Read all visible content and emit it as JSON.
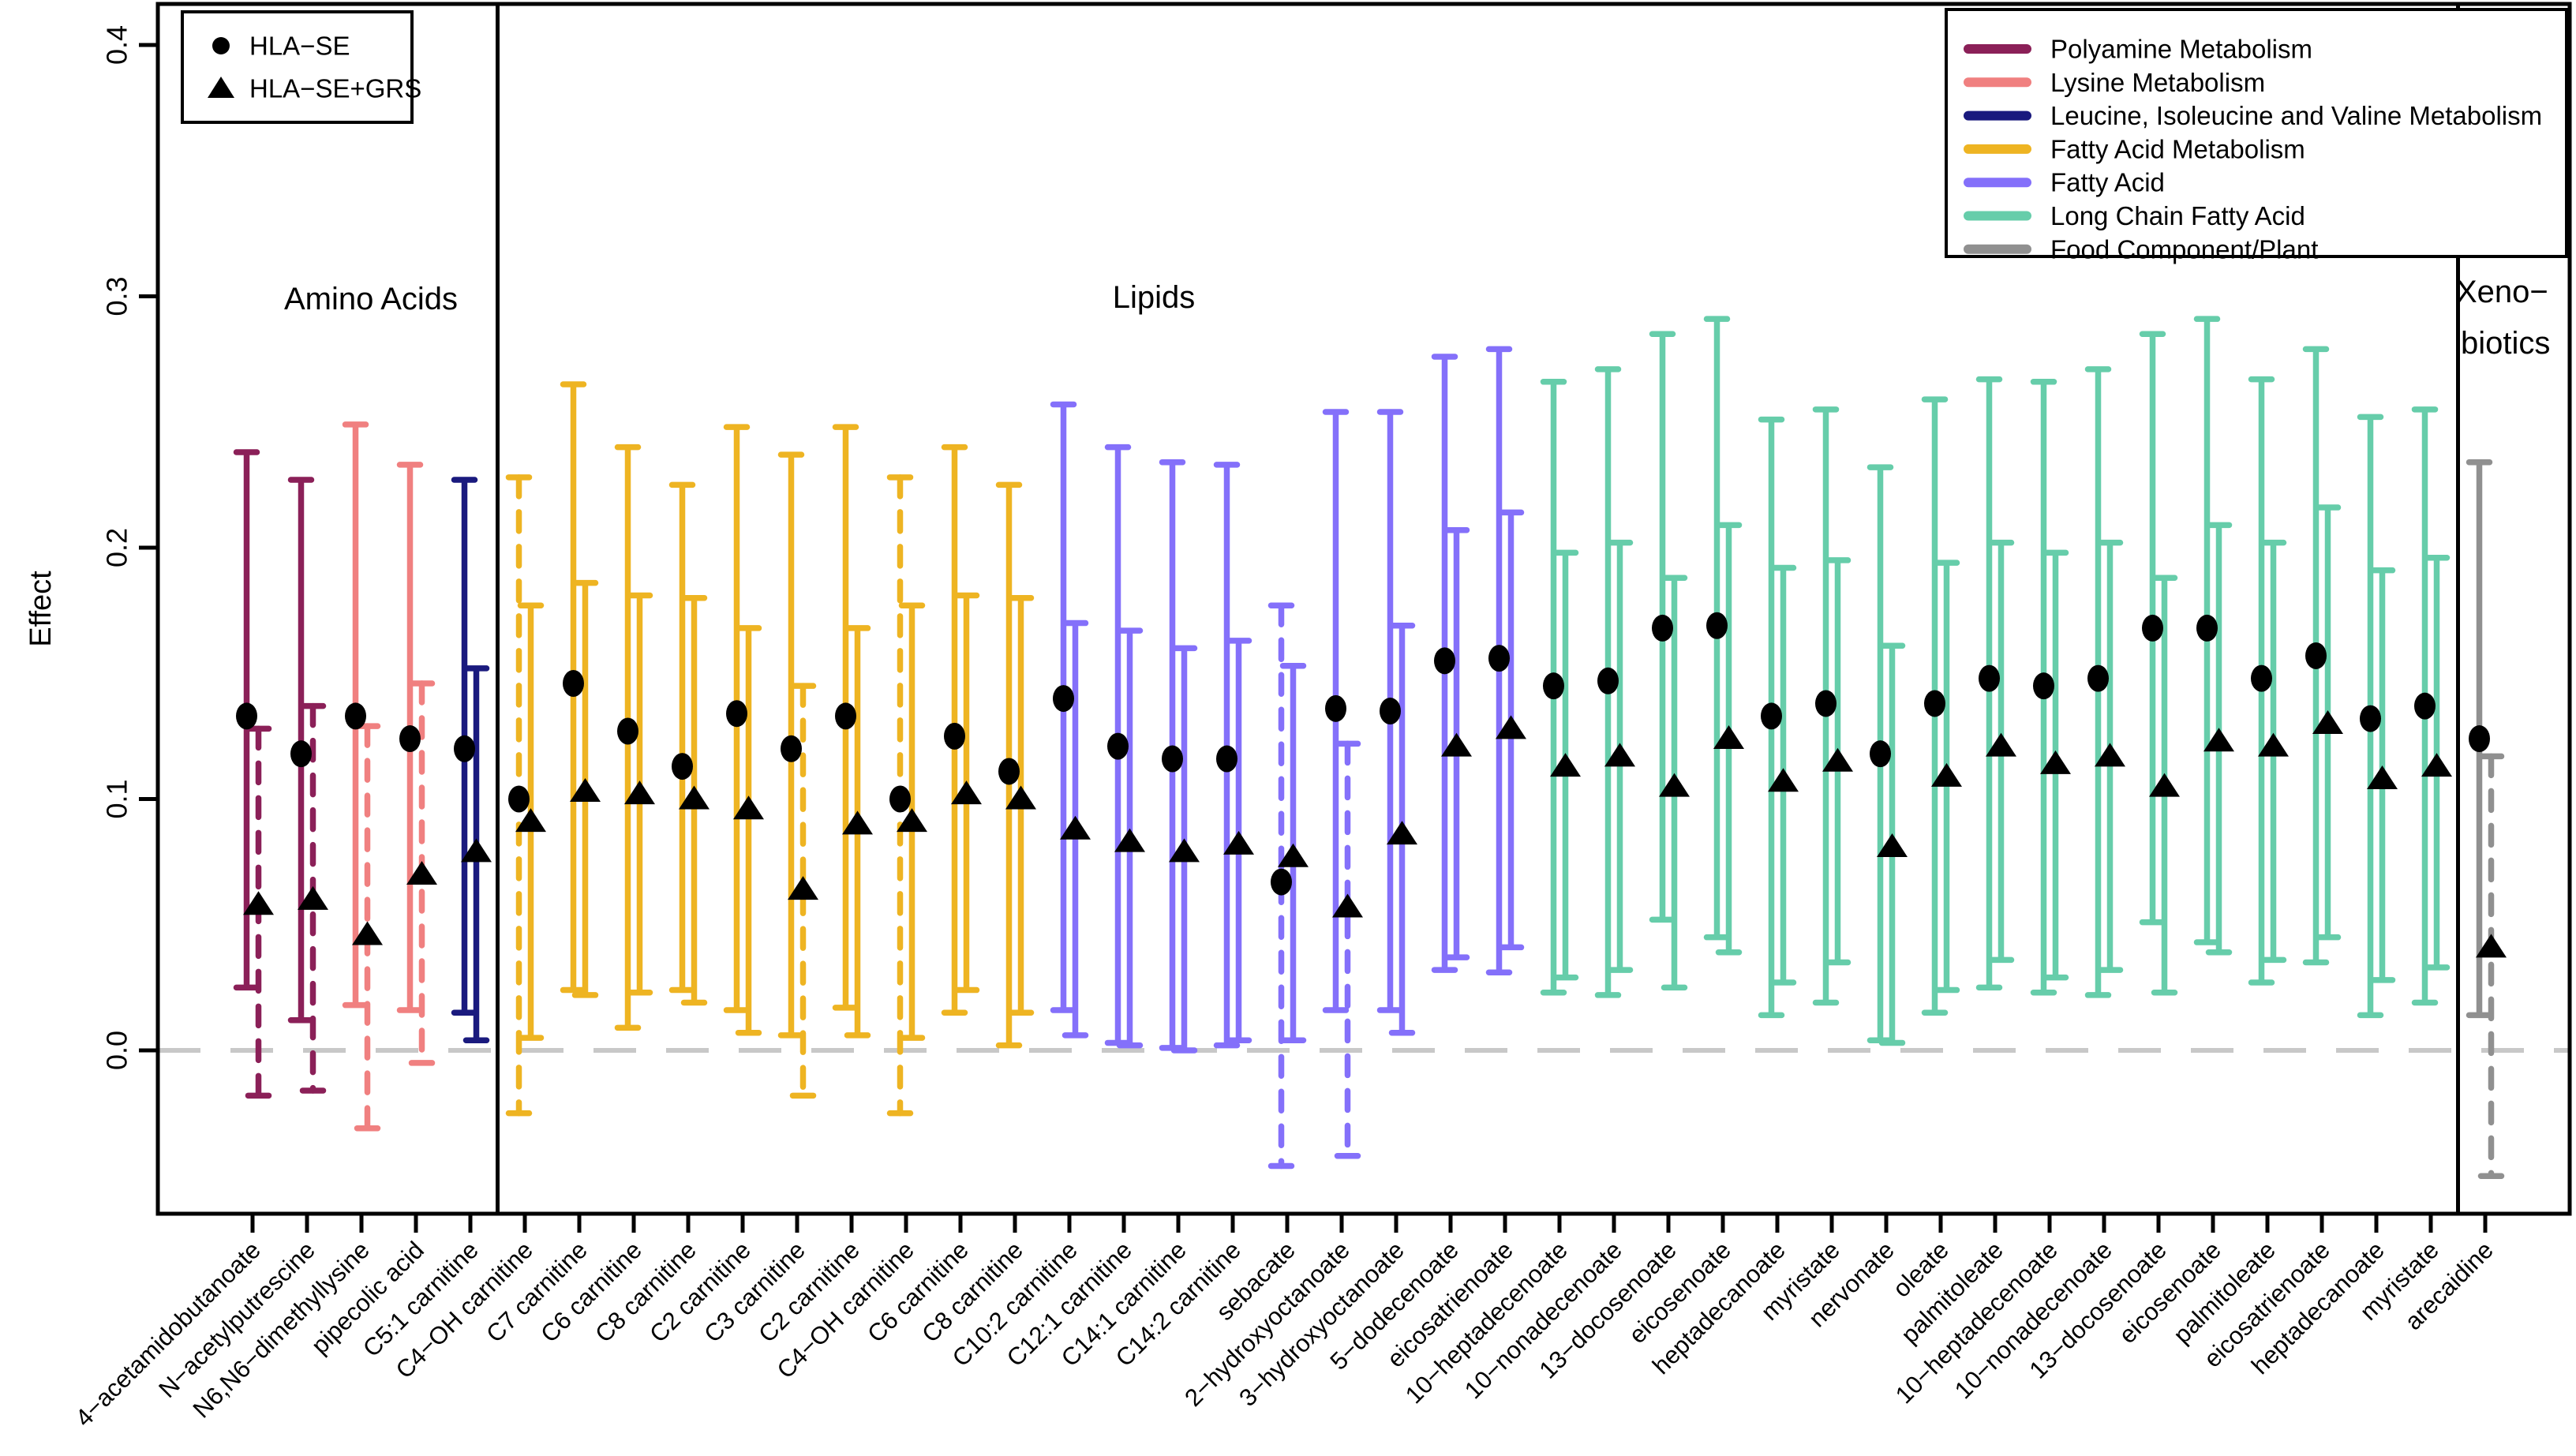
{
  "chart_data": {
    "type": "errorbar",
    "title": "",
    "ylabel": "Effect",
    "y_ticks": [
      {
        "value": 0.0,
        "label": "0.0"
      },
      {
        "value": 0.1,
        "label": "0.1"
      },
      {
        "value": 0.2,
        "label": "0.2"
      },
      {
        "value": 0.3,
        "label": "0.3"
      },
      {
        "value": 0.4,
        "label": "0.4"
      }
    ],
    "ylim": [
      -0.065,
      0.417
    ],
    "zero_line": 0.0,
    "grid": "off",
    "marker_legend": {
      "position": "top-left",
      "entries": [
        {
          "id": "se",
          "label": "HLA−SE",
          "marker": "circle"
        },
        {
          "id": "grs",
          "label": "HLA−SE+GRS",
          "marker": "triangle"
        }
      ]
    },
    "color_legend": {
      "position": "top-right",
      "entries": [
        {
          "id": "polyamine",
          "label": "Polyamine Metabolism",
          "color": "#8B2058"
        },
        {
          "id": "lysine",
          "label": "Lysine Metabolism",
          "color": "#F08080"
        },
        {
          "id": "bcaa",
          "label": "Leucine, Isoleucine and Valine Metabolism",
          "color": "#1A1A7E"
        },
        {
          "id": "fam",
          "label": "Fatty Acid Metabolism",
          "color": "#EEB422"
        },
        {
          "id": "fa",
          "label": "Fatty Acid",
          "color": "#8470FA"
        },
        {
          "id": "lcfa",
          "label": "Long Chain Fatty Acid",
          "color": "#66CDAA"
        },
        {
          "id": "food",
          "label": "Food Component/Plant",
          "color": "#909090"
        }
      ]
    },
    "sections": [
      {
        "lines": [
          "Amino Acids"
        ],
        "from": 0,
        "to": 4
      },
      {
        "lines": [
          "Lipids"
        ],
        "from": 5,
        "to": 40
      },
      {
        "lines": [
          "Xeno−",
          "biotics"
        ],
        "from": 41,
        "to": 41
      }
    ],
    "points": [
      {
        "label": "4−acetamidobutanoate",
        "group": "polyamine",
        "se": {
          "est": 0.133,
          "lo": 0.025,
          "hi": 0.238,
          "dashed": false
        },
        "grs": {
          "est": 0.058,
          "lo": -0.018,
          "hi": 0.128,
          "dashed": true
        }
      },
      {
        "label": "N−acetylputrescine",
        "group": "polyamine",
        "se": {
          "est": 0.118,
          "lo": 0.012,
          "hi": 0.227,
          "dashed": false
        },
        "grs": {
          "est": 0.06,
          "lo": -0.016,
          "hi": 0.137,
          "dashed": true
        }
      },
      {
        "label": "N6,N6−dimethyllysine",
        "group": "lysine",
        "se": {
          "est": 0.133,
          "lo": 0.018,
          "hi": 0.249,
          "dashed": false
        },
        "grs": {
          "est": 0.046,
          "lo": -0.031,
          "hi": 0.129,
          "dashed": true
        }
      },
      {
        "label": "pipecolic acid",
        "group": "lysine",
        "se": {
          "est": 0.124,
          "lo": 0.016,
          "hi": 0.233,
          "dashed": false
        },
        "grs": {
          "est": 0.07,
          "lo": -0.005,
          "hi": 0.146,
          "dashed": true
        }
      },
      {
        "label": "C5:1 carnitine",
        "group": "bcaa",
        "se": {
          "est": 0.12,
          "lo": 0.015,
          "hi": 0.227,
          "dashed": false
        },
        "grs": {
          "est": 0.079,
          "lo": 0.004,
          "hi": 0.152,
          "dashed": false
        }
      },
      {
        "label": "C4−OH carnitine",
        "group": "fam",
        "se": {
          "est": 0.1,
          "lo": -0.025,
          "hi": 0.228,
          "dashed": true
        },
        "grs": {
          "est": 0.091,
          "lo": 0.005,
          "hi": 0.177,
          "dashed": false
        }
      },
      {
        "label": "C7 carnitine",
        "group": "fam",
        "se": {
          "est": 0.146,
          "lo": 0.024,
          "hi": 0.265,
          "dashed": false
        },
        "grs": {
          "est": 0.103,
          "lo": 0.022,
          "hi": 0.186,
          "dashed": false
        }
      },
      {
        "label": "C6 carnitine",
        "group": "fam",
        "se": {
          "est": 0.127,
          "lo": 0.009,
          "hi": 0.24,
          "dashed": false
        },
        "grs": {
          "est": 0.102,
          "lo": 0.023,
          "hi": 0.181,
          "dashed": false
        }
      },
      {
        "label": "C8 carnitine",
        "group": "fam",
        "se": {
          "est": 0.113,
          "lo": 0.024,
          "hi": 0.225,
          "dashed": false
        },
        "grs": {
          "est": 0.1,
          "lo": 0.019,
          "hi": 0.18,
          "dashed": false
        }
      },
      {
        "label": "C2 carnitine",
        "group": "fam",
        "se": {
          "est": 0.134,
          "lo": 0.016,
          "hi": 0.248,
          "dashed": false
        },
        "grs": {
          "est": 0.096,
          "lo": 0.007,
          "hi": 0.168,
          "dashed": false
        }
      },
      {
        "label": "C3 carnitine",
        "group": "fam",
        "se": {
          "est": 0.12,
          "lo": 0.006,
          "hi": 0.237,
          "dashed": false
        },
        "grs": {
          "est": 0.064,
          "lo": -0.018,
          "hi": 0.145,
          "dashed": true
        }
      },
      {
        "label": "C2 carnitine",
        "group": "fam",
        "se": {
          "est": 0.133,
          "lo": 0.017,
          "hi": 0.248,
          "dashed": false
        },
        "grs": {
          "est": 0.09,
          "lo": 0.006,
          "hi": 0.168,
          "dashed": false
        }
      },
      {
        "label": "C4−OH carnitine",
        "group": "fam",
        "se": {
          "est": 0.1,
          "lo": -0.025,
          "hi": 0.228,
          "dashed": true
        },
        "grs": {
          "est": 0.091,
          "lo": 0.005,
          "hi": 0.177,
          "dashed": false
        }
      },
      {
        "label": "C6 carnitine",
        "group": "fam",
        "se": {
          "est": 0.125,
          "lo": 0.015,
          "hi": 0.24,
          "dashed": false
        },
        "grs": {
          "est": 0.102,
          "lo": 0.024,
          "hi": 0.181,
          "dashed": false
        }
      },
      {
        "label": "C8 carnitine",
        "group": "fam",
        "se": {
          "est": 0.111,
          "lo": 0.002,
          "hi": 0.225,
          "dashed": false
        },
        "grs": {
          "est": 0.1,
          "lo": 0.015,
          "hi": 0.18,
          "dashed": false
        }
      },
      {
        "label": "C10:2 carnitine",
        "group": "fa",
        "se": {
          "est": 0.14,
          "lo": 0.016,
          "hi": 0.257,
          "dashed": false
        },
        "grs": {
          "est": 0.088,
          "lo": 0.006,
          "hi": 0.17,
          "dashed": false
        }
      },
      {
        "label": "C12:1 carnitine",
        "group": "fa",
        "se": {
          "est": 0.121,
          "lo": 0.003,
          "hi": 0.24,
          "dashed": false
        },
        "grs": {
          "est": 0.083,
          "lo": 0.002,
          "hi": 0.167,
          "dashed": false
        }
      },
      {
        "label": "C14:1 carnitine",
        "group": "fa",
        "se": {
          "est": 0.116,
          "lo": 0.001,
          "hi": 0.234,
          "dashed": false
        },
        "grs": {
          "est": 0.079,
          "lo": 0.0,
          "hi": 0.16,
          "dashed": false
        }
      },
      {
        "label": "C14:2 carnitine",
        "group": "fa",
        "se": {
          "est": 0.116,
          "lo": 0.002,
          "hi": 0.233,
          "dashed": false
        },
        "grs": {
          "est": 0.082,
          "lo": 0.004,
          "hi": 0.163,
          "dashed": false
        }
      },
      {
        "label": "sebacate",
        "group": "fa",
        "se": {
          "est": 0.067,
          "lo": -0.046,
          "hi": 0.177,
          "dashed": true
        },
        "grs": {
          "est": 0.077,
          "lo": 0.004,
          "hi": 0.153,
          "dashed": false
        }
      },
      {
        "label": "2−hydroxyoctanoate",
        "group": "fa",
        "se": {
          "est": 0.136,
          "lo": 0.016,
          "hi": 0.254,
          "dashed": false
        },
        "grs": {
          "est": 0.057,
          "lo": -0.042,
          "hi": 0.122,
          "dashed": true
        }
      },
      {
        "label": "3−hydroxyoctanoate",
        "group": "fa",
        "se": {
          "est": 0.135,
          "lo": 0.016,
          "hi": 0.254,
          "dashed": false
        },
        "grs": {
          "est": 0.086,
          "lo": 0.007,
          "hi": 0.169,
          "dashed": false
        }
      },
      {
        "label": "5−dodecenoate",
        "group": "fa",
        "se": {
          "est": 0.155,
          "lo": 0.032,
          "hi": 0.276,
          "dashed": false
        },
        "grs": {
          "est": 0.121,
          "lo": 0.037,
          "hi": 0.207,
          "dashed": false
        }
      },
      {
        "label": "eicosatrienoate",
        "group": "fa",
        "se": {
          "est": 0.156,
          "lo": 0.031,
          "hi": 0.279,
          "dashed": false
        },
        "grs": {
          "est": 0.128,
          "lo": 0.041,
          "hi": 0.214,
          "dashed": false
        }
      },
      {
        "label": "10−heptadecenoate",
        "group": "lcfa",
        "se": {
          "est": 0.145,
          "lo": 0.023,
          "hi": 0.266,
          "dashed": false
        },
        "grs": {
          "est": 0.113,
          "lo": 0.029,
          "hi": 0.198,
          "dashed": false
        }
      },
      {
        "label": "10−nonadecenoate",
        "group": "lcfa",
        "se": {
          "est": 0.147,
          "lo": 0.022,
          "hi": 0.271,
          "dashed": false
        },
        "grs": {
          "est": 0.117,
          "lo": 0.032,
          "hi": 0.202,
          "dashed": false
        }
      },
      {
        "label": "13−docosenoate",
        "group": "lcfa",
        "se": {
          "est": 0.168,
          "lo": 0.052,
          "hi": 0.285,
          "dashed": false
        },
        "grs": {
          "est": 0.105,
          "lo": 0.025,
          "hi": 0.188,
          "dashed": false
        }
      },
      {
        "label": "eicosenoate",
        "group": "lcfa",
        "se": {
          "est": 0.169,
          "lo": 0.045,
          "hi": 0.291,
          "dashed": false
        },
        "grs": {
          "est": 0.124,
          "lo": 0.039,
          "hi": 0.209,
          "dashed": false
        }
      },
      {
        "label": "heptadecanoate",
        "group": "lcfa",
        "se": {
          "est": 0.133,
          "lo": 0.014,
          "hi": 0.251,
          "dashed": false
        },
        "grs": {
          "est": 0.107,
          "lo": 0.027,
          "hi": 0.192,
          "dashed": false
        }
      },
      {
        "label": "myristate",
        "group": "lcfa",
        "se": {
          "est": 0.138,
          "lo": 0.019,
          "hi": 0.255,
          "dashed": false
        },
        "grs": {
          "est": 0.115,
          "lo": 0.035,
          "hi": 0.195,
          "dashed": false
        }
      },
      {
        "label": "nervonate",
        "group": "lcfa",
        "se": {
          "est": 0.118,
          "lo": 0.004,
          "hi": 0.232,
          "dashed": false
        },
        "grs": {
          "est": 0.081,
          "lo": 0.003,
          "hi": 0.161,
          "dashed": false
        }
      },
      {
        "label": "oleate",
        "group": "lcfa",
        "se": {
          "est": 0.138,
          "lo": 0.015,
          "hi": 0.259,
          "dashed": false
        },
        "grs": {
          "est": 0.109,
          "lo": 0.024,
          "hi": 0.194,
          "dashed": false
        }
      },
      {
        "label": "palmitoleate",
        "group": "lcfa",
        "se": {
          "est": 0.148,
          "lo": 0.025,
          "hi": 0.267,
          "dashed": false
        },
        "grs": {
          "est": 0.121,
          "lo": 0.036,
          "hi": 0.202,
          "dashed": false
        }
      },
      {
        "label": "10−heptadecenoate",
        "group": "lcfa",
        "se": {
          "est": 0.145,
          "lo": 0.023,
          "hi": 0.266,
          "dashed": false
        },
        "grs": {
          "est": 0.114,
          "lo": 0.029,
          "hi": 0.198,
          "dashed": false
        }
      },
      {
        "label": "10−nonadecenoate",
        "group": "lcfa",
        "se": {
          "est": 0.148,
          "lo": 0.022,
          "hi": 0.271,
          "dashed": false
        },
        "grs": {
          "est": 0.117,
          "lo": 0.032,
          "hi": 0.202,
          "dashed": false
        }
      },
      {
        "label": "13−docosenoate",
        "group": "lcfa",
        "se": {
          "est": 0.168,
          "lo": 0.051,
          "hi": 0.285,
          "dashed": false
        },
        "grs": {
          "est": 0.105,
          "lo": 0.023,
          "hi": 0.188,
          "dashed": false
        }
      },
      {
        "label": "eicosenoate",
        "group": "lcfa",
        "se": {
          "est": 0.168,
          "lo": 0.043,
          "hi": 0.291,
          "dashed": false
        },
        "grs": {
          "est": 0.123,
          "lo": 0.039,
          "hi": 0.209,
          "dashed": false
        }
      },
      {
        "label": "palmitoleate",
        "group": "lcfa",
        "se": {
          "est": 0.148,
          "lo": 0.027,
          "hi": 0.267,
          "dashed": false
        },
        "grs": {
          "est": 0.121,
          "lo": 0.036,
          "hi": 0.202,
          "dashed": false
        }
      },
      {
        "label": "eicosatrienoate",
        "group": "lcfa",
        "se": {
          "est": 0.157,
          "lo": 0.035,
          "hi": 0.279,
          "dashed": false
        },
        "grs": {
          "est": 0.13,
          "lo": 0.045,
          "hi": 0.216,
          "dashed": false
        }
      },
      {
        "label": "heptadecanoate",
        "group": "lcfa",
        "se": {
          "est": 0.132,
          "lo": 0.014,
          "hi": 0.252,
          "dashed": false
        },
        "grs": {
          "est": 0.108,
          "lo": 0.028,
          "hi": 0.191,
          "dashed": false
        }
      },
      {
        "label": "myristate",
        "group": "lcfa",
        "se": {
          "est": 0.137,
          "lo": 0.019,
          "hi": 0.255,
          "dashed": false
        },
        "grs": {
          "est": 0.113,
          "lo": 0.033,
          "hi": 0.196,
          "dashed": false
        }
      },
      {
        "label": "arecaidine",
        "group": "food",
        "se": {
          "est": 0.124,
          "lo": 0.014,
          "hi": 0.234,
          "dashed": false
        },
        "grs": {
          "est": 0.041,
          "lo": -0.05,
          "hi": 0.117,
          "dashed": true
        }
      }
    ],
    "colors": {
      "marker": "#000000",
      "zero_line": "#C8C8C8",
      "frame": "#000000"
    }
  }
}
